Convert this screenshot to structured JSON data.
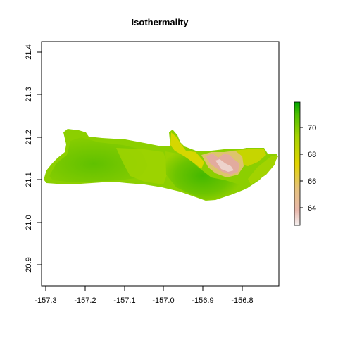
{
  "chart_data": {
    "type": "heatmap",
    "title": "Isothermality",
    "xlabel": "",
    "ylabel": "",
    "x_ticks": [
      "-157.3",
      "-157.2",
      "-157.1",
      "-157.0",
      "-156.9",
      "-156.8"
    ],
    "y_ticks": [
      "20.9",
      "21.0",
      "21.1",
      "21.2",
      "21.3",
      "21.4"
    ],
    "xlim": [
      -157.31,
      -156.71
    ],
    "ylim": [
      20.85,
      21.43
    ],
    "legend": {
      "placement": "right",
      "ticks": [
        "64",
        "66",
        "68",
        "70"
      ],
      "range": [
        62.7,
        71.9
      ],
      "colors": [
        "#f2f2f2",
        "#e6b0a4",
        "#e8c08a",
        "#e3d400",
        "#a8d400",
        "#6cc800",
        "#0aa800"
      ]
    }
  }
}
